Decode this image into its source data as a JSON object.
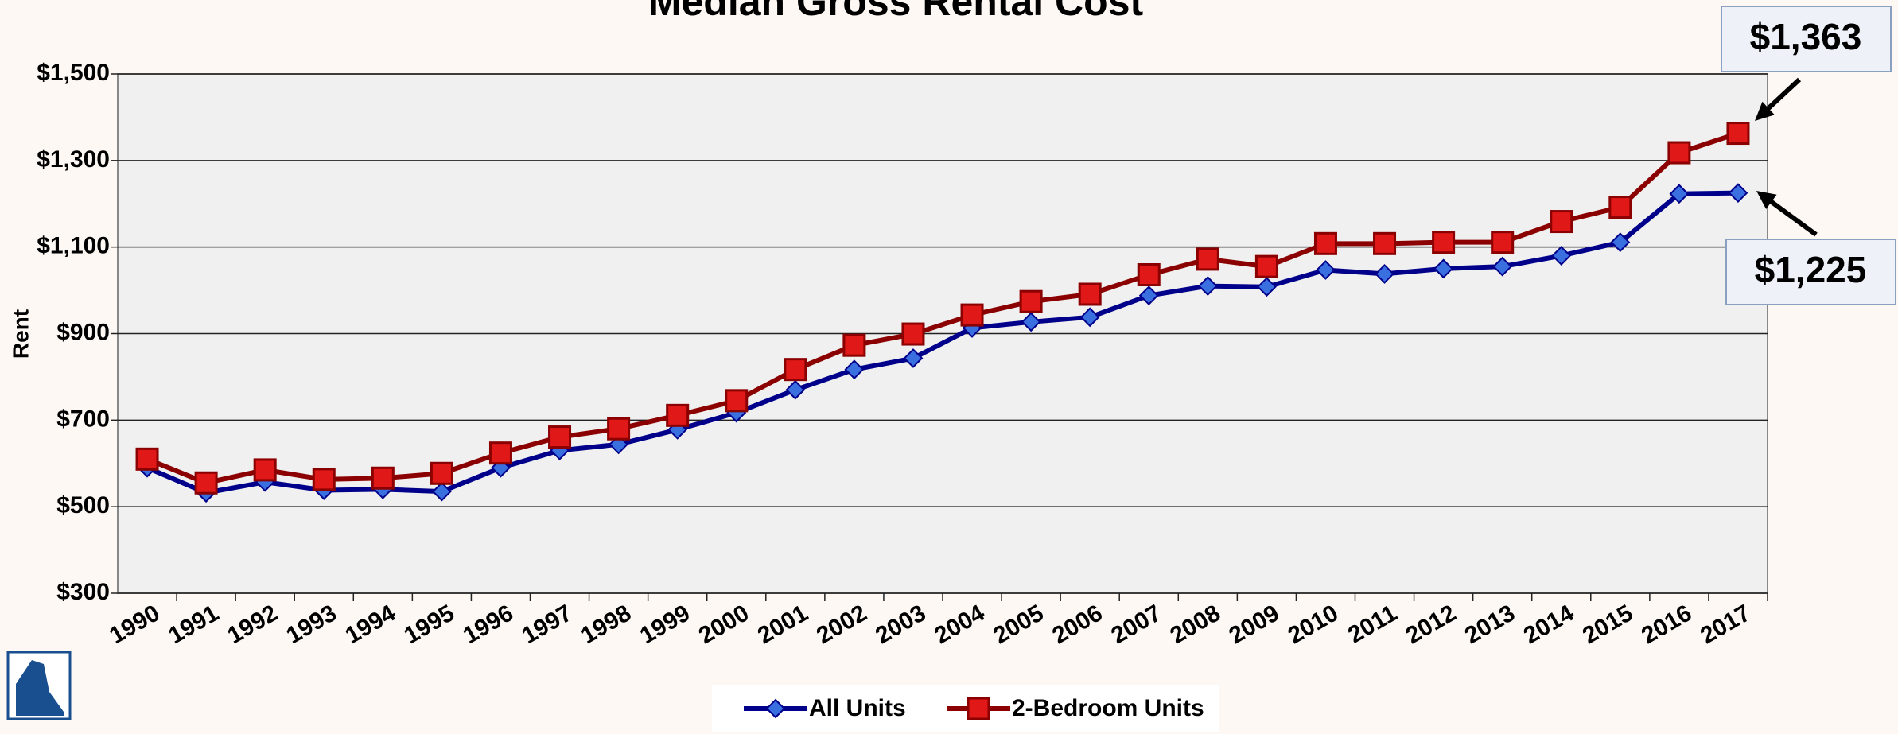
{
  "chart_data": {
    "type": "line",
    "title": "Median Gross Rental Cost",
    "ylabel": "Rent",
    "categories": [
      "1990",
      "1991",
      "1992",
      "1993",
      "1994",
      "1995",
      "1996",
      "1997",
      "1998",
      "1999",
      "2000",
      "2001",
      "2002",
      "2003",
      "2004",
      "2005",
      "2006",
      "2007",
      "2008",
      "2009",
      "2010",
      "2011",
      "2012",
      "2013",
      "2014",
      "2015",
      "2016",
      "2017"
    ],
    "series": [
      {
        "name": "All Units",
        "color": "#00008b",
        "marker_color": "#3a6fe0",
        "marker": "diamond",
        "values": [
          590,
          532,
          557,
          538,
          540,
          535,
          590,
          630,
          644,
          678,
          717,
          770,
          817,
          843,
          913,
          927,
          938,
          988,
          1010,
          1008,
          1047,
          1038,
          1050,
          1055,
          1080,
          1111,
          1223,
          1225
        ]
      },
      {
        "name": "2-Bedroom Units",
        "color": "#8b0000",
        "marker_color": "#e01818",
        "marker": "square",
        "values": [
          610,
          555,
          585,
          563,
          566,
          577,
          624,
          661,
          680,
          711,
          745,
          817,
          873,
          899,
          943,
          974,
          991,
          1036,
          1072,
          1055,
          1108,
          1108,
          1111,
          1111,
          1159,
          1192,
          1318,
          1363
        ]
      }
    ],
    "annotations": [
      "$1,363",
      "$1,225"
    ],
    "ylim": [
      300,
      1500
    ],
    "yticks": [
      {
        "value": 300,
        "label": "$300"
      },
      {
        "value": 500,
        "label": "$500"
      },
      {
        "value": 700,
        "label": "$700"
      },
      {
        "value": 900,
        "label": "$900"
      },
      {
        "value": 1100,
        "label": "$1,100"
      },
      {
        "value": 1300,
        "label": "$1,300"
      },
      {
        "value": 1500,
        "label": "$1,500"
      }
    ],
    "grid": true,
    "legend": "bottom"
  }
}
